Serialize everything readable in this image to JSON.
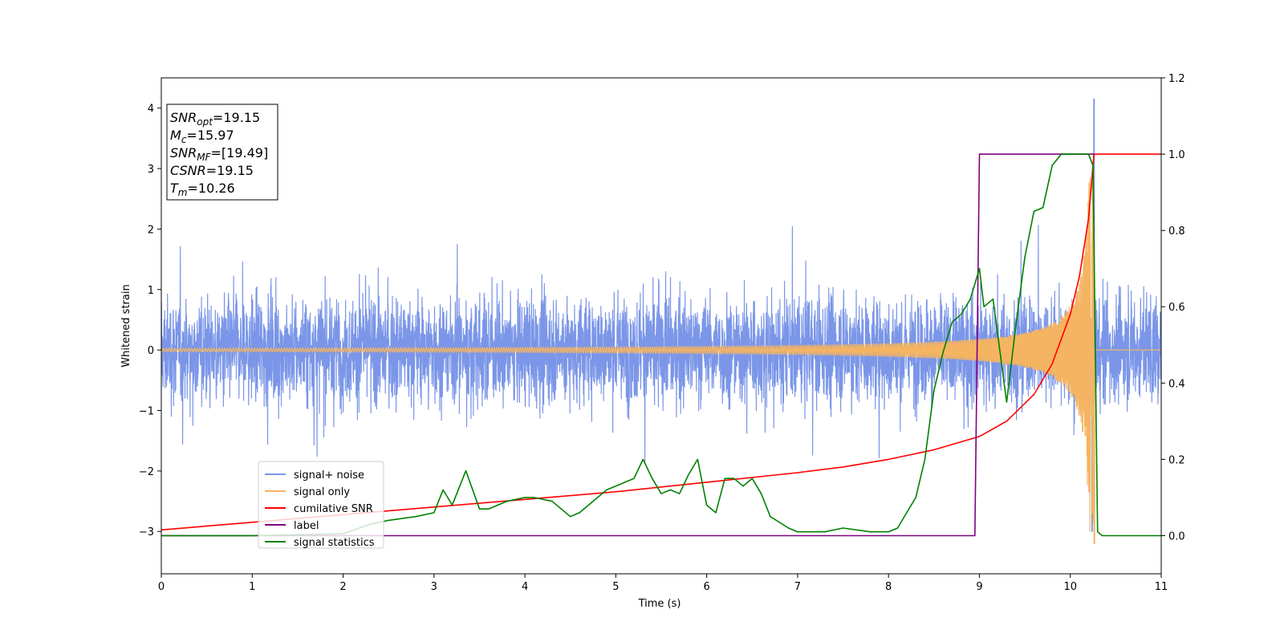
{
  "chart_data": {
    "type": "line",
    "xlabel": "Time (s)",
    "ylabel": "Whitened strain",
    "xlim": [
      0,
      11
    ],
    "ylim_left": [
      -3.7,
      4.5
    ],
    "ylim_right": [
      -0.1,
      1.2
    ],
    "x_ticks": [
      "0",
      "1",
      "2",
      "3",
      "4",
      "5",
      "6",
      "7",
      "8",
      "9",
      "10",
      "11"
    ],
    "y_ticks_left": [
      "4",
      "3",
      "2",
      "1",
      "0",
      "−1",
      "−2",
      "−3"
    ],
    "y_ticks_right": [
      "1.2",
      "1.0",
      "0.8",
      "0.6",
      "0.4",
      "0.2",
      "0.0"
    ],
    "annotation": {
      "lines": [
        {
          "name": "SNR",
          "sub": "opt",
          "value": "=19.15"
        },
        {
          "name": "M",
          "sub": "c",
          "value": "=15.97"
        },
        {
          "name": "SNR",
          "sub": "MF",
          "value": "=[19.49]"
        },
        {
          "name": "CSNR",
          "sub": "",
          "value": "=19.15"
        },
        {
          "name": "T",
          "sub": "m",
          "value": "=10.26"
        }
      ]
    },
    "legend_position": "lower-left",
    "series": [
      {
        "name": "signal+ noise",
        "axis": "left",
        "color": "#7b96e8",
        "description": "whitened noisy strain, approx ±1.7 with spikes to ~±3; spike to 4.15 at t≈10.26"
      },
      {
        "name": "signal only",
        "axis": "left",
        "color": "#f5b461",
        "description": "chirp, amplitude rising toward merger at t≈10.26",
        "merger_time": 10.26
      },
      {
        "name": "cumilative SNR",
        "axis": "right",
        "color": "#ff0000",
        "x": [
          0,
          1,
          2,
          3,
          4,
          5,
          6,
          7,
          7.5,
          8,
          8.5,
          9,
          9.3,
          9.6,
          9.8,
          10.0,
          10.1,
          10.2,
          10.26,
          11
        ],
        "y": [
          0.015,
          0.035,
          0.055,
          0.075,
          0.095,
          0.115,
          0.14,
          0.165,
          0.18,
          0.2,
          0.225,
          0.26,
          0.3,
          0.37,
          0.45,
          0.58,
          0.68,
          0.83,
          1.0,
          1.0
        ]
      },
      {
        "name": "label",
        "axis": "right",
        "color": "#800080",
        "x": [
          0,
          8.95,
          9.0,
          10.26,
          10.27
        ],
        "y": [
          0,
          0,
          1,
          1,
          null
        ]
      },
      {
        "name": "signal statistics",
        "axis": "right",
        "color": "#008000",
        "x": [
          0,
          1.0,
          2.0,
          2.3,
          2.5,
          2.8,
          3.0,
          3.1,
          3.2,
          3.35,
          3.5,
          3.6,
          3.8,
          4.0,
          4.1,
          4.3,
          4.5,
          4.6,
          4.8,
          4.9,
          5.0,
          5.1,
          5.2,
          5.3,
          5.4,
          5.5,
          5.6,
          5.7,
          5.8,
          5.9,
          6.0,
          6.1,
          6.2,
          6.3,
          6.4,
          6.5,
          6.6,
          6.7,
          6.9,
          7.0,
          7.3,
          7.5,
          7.8,
          8.0,
          8.1,
          8.2,
          8.3,
          8.4,
          8.5,
          8.6,
          8.7,
          8.8,
          8.9,
          9.0,
          9.05,
          9.15,
          9.3,
          9.4,
          9.5,
          9.6,
          9.7,
          9.8,
          9.9,
          10.0,
          10.1,
          10.2,
          10.25,
          10.3,
          10.35,
          11
        ],
        "y": [
          0,
          0,
          0.005,
          0.03,
          0.04,
          0.05,
          0.06,
          0.12,
          0.08,
          0.17,
          0.07,
          0.07,
          0.09,
          0.1,
          0.1,
          0.09,
          0.05,
          0.06,
          0.1,
          0.12,
          0.13,
          0.14,
          0.15,
          0.2,
          0.15,
          0.11,
          0.12,
          0.11,
          0.16,
          0.2,
          0.08,
          0.06,
          0.15,
          0.15,
          0.13,
          0.15,
          0.11,
          0.05,
          0.02,
          0.01,
          0.01,
          0.02,
          0.01,
          0.01,
          0.02,
          0.06,
          0.1,
          0.2,
          0.38,
          0.48,
          0.56,
          0.58,
          0.62,
          0.7,
          0.6,
          0.62,
          0.35,
          0.55,
          0.73,
          0.85,
          0.86,
          0.97,
          1.0,
          1.0,
          1.0,
          1.0,
          0.97,
          0.01,
          0.0,
          0.0
        ]
      }
    ]
  }
}
